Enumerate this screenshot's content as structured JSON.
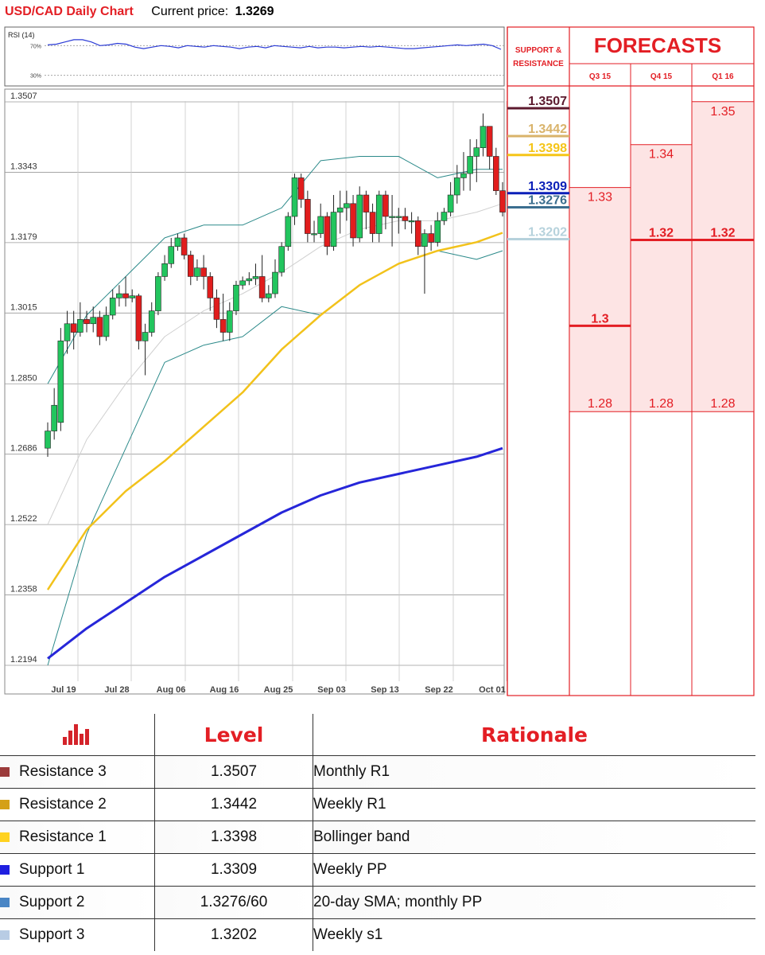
{
  "header": {
    "title": "USD/CAD Daily Chart",
    "price_label": "Current price:",
    "price": "1.3269"
  },
  "rsi": {
    "label": "RSI (14)",
    "levels": [
      "70%",
      "30%"
    ],
    "values": [
      71,
      72,
      75,
      78,
      78,
      75,
      70,
      71,
      73,
      72,
      68,
      66,
      68,
      70,
      69,
      67,
      70,
      69,
      68,
      70,
      69,
      68,
      66,
      68,
      69,
      67,
      70,
      69,
      68,
      67,
      69,
      67,
      68,
      68,
      67,
      68,
      69,
      68,
      69,
      68,
      67,
      66,
      66,
      67,
      68,
      69,
      70,
      71,
      70,
      71,
      72,
      70,
      65
    ]
  },
  "chart_data": {
    "type": "candlestick",
    "title": "USD/CAD Daily Chart",
    "y_ticks": [
      "1.3507",
      "1.3343",
      "1.3179",
      "1.3015",
      "1.2850",
      "1.2686",
      "1.2522",
      "1.2358",
      "1.2194"
    ],
    "ylim": [
      1.2194,
      1.3507
    ],
    "x_ticks": [
      "Jul 19",
      "Jul 28",
      "Aug 06",
      "Aug 16",
      "Aug 25",
      "Sep 03",
      "Sep 13",
      "Sep 22",
      "Oct 01"
    ],
    "candles": [
      [
        1.27,
        1.274,
        1.268,
        1.276
      ],
      [
        1.274,
        1.28,
        1.272,
        1.284
      ],
      [
        1.276,
        1.295,
        1.274,
        1.298
      ],
      [
        1.295,
        1.299,
        1.292,
        1.302
      ],
      [
        1.299,
        1.297,
        1.293,
        1.302
      ],
      [
        1.297,
        1.3,
        1.296,
        1.304
      ],
      [
        1.3,
        1.299,
        1.297,
        1.302
      ],
      [
        1.299,
        1.3005,
        1.297,
        1.303
      ],
      [
        1.3005,
        1.296,
        1.294,
        1.302
      ],
      [
        1.296,
        1.301,
        1.295,
        1.303
      ],
      [
        1.301,
        1.305,
        1.3,
        1.307
      ],
      [
        1.305,
        1.306,
        1.303,
        1.308
      ],
      [
        1.306,
        1.305,
        1.303,
        1.31
      ],
      [
        1.305,
        1.3055,
        1.304,
        1.307
      ],
      [
        1.3055,
        1.295,
        1.293,
        1.306
      ],
      [
        1.295,
        1.297,
        1.287,
        1.299
      ],
      [
        1.297,
        1.302,
        1.296,
        1.304
      ],
      [
        1.302,
        1.31,
        1.301,
        1.311
      ],
      [
        1.31,
        1.313,
        1.309,
        1.315
      ],
      [
        1.313,
        1.317,
        1.312,
        1.319
      ],
      [
        1.317,
        1.319,
        1.316,
        1.32
      ],
      [
        1.319,
        1.315,
        1.314,
        1.32
      ],
      [
        1.315,
        1.31,
        1.308,
        1.316
      ],
      [
        1.31,
        1.312,
        1.309,
        1.314
      ],
      [
        1.312,
        1.31,
        1.307,
        1.315
      ],
      [
        1.31,
        1.305,
        1.302,
        1.311
      ],
      [
        1.305,
        1.3,
        1.298,
        1.307
      ],
      [
        1.3,
        1.297,
        1.295,
        1.306
      ],
      [
        1.297,
        1.302,
        1.295,
        1.304
      ],
      [
        1.302,
        1.308,
        1.301,
        1.309
      ],
      [
        1.308,
        1.309,
        1.307,
        1.31
      ],
      [
        1.309,
        1.3095,
        1.308,
        1.311
      ],
      [
        1.3095,
        1.31,
        1.308,
        1.313
      ],
      [
        1.31,
        1.305,
        1.304,
        1.315
      ],
      [
        1.305,
        1.306,
        1.304,
        1.308
      ],
      [
        1.306,
        1.311,
        1.305,
        1.314
      ],
      [
        1.311,
        1.317,
        1.31,
        1.318
      ],
      [
        1.317,
        1.324,
        1.316,
        1.325
      ],
      [
        1.324,
        1.333,
        1.322,
        1.334
      ],
      [
        1.333,
        1.328,
        1.326,
        1.334
      ],
      [
        1.328,
        1.32,
        1.318,
        1.33
      ],
      [
        1.32,
        1.32,
        1.318,
        1.323
      ],
      [
        1.32,
        1.324,
        1.319,
        1.327
      ],
      [
        1.324,
        1.317,
        1.315,
        1.325
      ],
      [
        1.317,
        1.325,
        1.316,
        1.329
      ],
      [
        1.325,
        1.326,
        1.32,
        1.33
      ],
      [
        1.326,
        1.327,
        1.323,
        1.33
      ],
      [
        1.327,
        1.319,
        1.317,
        1.329
      ],
      [
        1.319,
        1.329,
        1.318,
        1.331
      ],
      [
        1.329,
        1.325,
        1.321,
        1.33
      ],
      [
        1.325,
        1.32,
        1.318,
        1.327
      ],
      [
        1.32,
        1.329,
        1.318,
        1.33
      ],
      [
        1.329,
        1.324,
        1.321,
        1.33
      ],
      [
        1.324,
        1.324,
        1.317,
        1.329
      ],
      [
        1.324,
        1.324,
        1.32,
        1.326
      ],
      [
        1.324,
        1.323,
        1.321,
        1.326
      ],
      [
        1.323,
        1.323,
        1.32,
        1.325
      ],
      [
        1.323,
        1.317,
        1.315,
        1.324
      ],
      [
        1.317,
        1.32,
        1.306,
        1.321
      ],
      [
        1.32,
        1.318,
        1.316,
        1.322
      ],
      [
        1.318,
        1.323,
        1.317,
        1.325
      ],
      [
        1.323,
        1.325,
        1.322,
        1.326
      ],
      [
        1.325,
        1.329,
        1.324,
        1.332
      ],
      [
        1.329,
        1.333,
        1.327,
        1.336
      ],
      [
        1.333,
        1.334,
        1.33,
        1.339
      ],
      [
        1.334,
        1.338,
        1.33,
        1.342
      ],
      [
        1.338,
        1.34,
        1.332,
        1.342
      ],
      [
        1.34,
        1.345,
        1.338,
        1.348
      ],
      [
        1.345,
        1.338,
        1.335,
        1.345
      ],
      [
        1.338,
        1.33,
        1.329,
        1.34
      ],
      [
        1.33,
        1.325,
        1.324,
        1.332
      ]
    ],
    "bollinger_upper": [
      [
        0,
        1.285
      ],
      [
        6,
        1.301
      ],
      [
        12,
        1.31
      ],
      [
        18,
        1.319
      ],
      [
        24,
        1.322
      ],
      [
        30,
        1.322
      ],
      [
        36,
        1.326
      ],
      [
        42,
        1.337
      ],
      [
        48,
        1.338
      ],
      [
        54,
        1.338
      ],
      [
        60,
        1.333
      ],
      [
        66,
        1.335
      ],
      [
        70,
        1.335
      ]
    ],
    "bollinger_lower": [
      [
        0,
        1.2194
      ],
      [
        6,
        1.25
      ],
      [
        12,
        1.27
      ],
      [
        18,
        1.29
      ],
      [
        24,
        1.294
      ],
      [
        30,
        1.296
      ],
      [
        36,
        1.303
      ],
      [
        42,
        1.301
      ],
      [
        48,
        1.308
      ],
      [
        54,
        1.313
      ],
      [
        60,
        1.316
      ],
      [
        66,
        1.314
      ],
      [
        70,
        1.316
      ]
    ],
    "sma_20": [
      [
        0,
        1.2522
      ],
      [
        6,
        1.272
      ],
      [
        12,
        1.285
      ],
      [
        18,
        1.296
      ],
      [
        24,
        1.302
      ],
      [
        30,
        1.306
      ],
      [
        36,
        1.311
      ],
      [
        42,
        1.317
      ],
      [
        48,
        1.321
      ],
      [
        54,
        1.323
      ],
      [
        60,
        1.323
      ],
      [
        66,
        1.325
      ],
      [
        70,
        1.327
      ]
    ],
    "sma_50": [
      [
        0,
        1.237
      ],
      [
        6,
        1.251
      ],
      [
        12,
        1.26
      ],
      [
        18,
        1.267
      ],
      [
        24,
        1.275
      ],
      [
        30,
        1.283
      ],
      [
        36,
        1.293
      ],
      [
        42,
        1.301
      ],
      [
        48,
        1.308
      ],
      [
        54,
        1.313
      ],
      [
        60,
        1.316
      ],
      [
        66,
        1.318
      ],
      [
        70,
        1.3202
      ]
    ],
    "sma_200": [
      [
        0,
        1.221
      ],
      [
        6,
        1.228
      ],
      [
        12,
        1.234
      ],
      [
        18,
        1.24
      ],
      [
        24,
        1.245
      ],
      [
        30,
        1.25
      ],
      [
        36,
        1.255
      ],
      [
        42,
        1.259
      ],
      [
        48,
        1.262
      ],
      [
        54,
        1.264
      ],
      [
        60,
        1.266
      ],
      [
        66,
        1.268
      ],
      [
        70,
        1.27
      ]
    ],
    "levels": [
      {
        "label": "1.3507",
        "value": 1.3507,
        "color": "#5c1a2e"
      },
      {
        "label": "1.3442",
        "value": 1.3442,
        "color": "#d9b36a"
      },
      {
        "label": "1.3398",
        "value": 1.3398,
        "color": "#f5c518"
      },
      {
        "label": "1.3309",
        "value": 1.3309,
        "color": "#0a1fb8"
      },
      {
        "label": "1.3276",
        "value": 1.3276,
        "color": "#3b6e8f"
      },
      {
        "label": "1.3202",
        "value": 1.3202,
        "color": "#b6d2dc"
      }
    ]
  },
  "forecasts": {
    "sr_header": [
      "SUPPORT &",
      "RESISTANCE"
    ],
    "title": "FORECASTS",
    "quarters": [
      "Q3 15",
      "Q4 15",
      "Q1 16"
    ],
    "columns": [
      {
        "high": "1.33",
        "high_value": 1.33,
        "mid": "1.3",
        "mid_value": 1.3,
        "low": "1.28",
        "low_value": 1.28
      },
      {
        "high": "1.34",
        "high_value": 1.34,
        "mid": "1.32",
        "mid_value": 1.32,
        "low": "1.28",
        "low_value": 1.28
      },
      {
        "high": "1.35",
        "high_value": 1.35,
        "mid": "1.32",
        "mid_value": 1.32,
        "low": "1.28",
        "low_value": 1.28
      }
    ]
  },
  "table": {
    "header_level": "Level",
    "header_rationale": "Rationale",
    "rows": [
      {
        "name": "Resistance 3",
        "level": "1.3507",
        "rationale": "Monthly R1",
        "color": "#9b3b3b"
      },
      {
        "name": "Resistance 2",
        "level": "1.3442",
        "rationale": "Weekly R1",
        "color": "#d4a017"
      },
      {
        "name": "Resistance 1",
        "level": "1.3398",
        "rationale": "Bollinger band",
        "color": "#ffd21f"
      },
      {
        "name": "Support 1",
        "level": "1.3309",
        "rationale": "Weekly PP",
        "color": "#1f1fe0"
      },
      {
        "name": "Support 2",
        "level": "1.3276/60",
        "rationale": "20-day SMA; monthly PP",
        "color": "#4a86c5"
      },
      {
        "name": "Support 3",
        "level": "1.3202",
        "rationale": "Weekly s1",
        "color": "#b8cce4"
      }
    ]
  }
}
